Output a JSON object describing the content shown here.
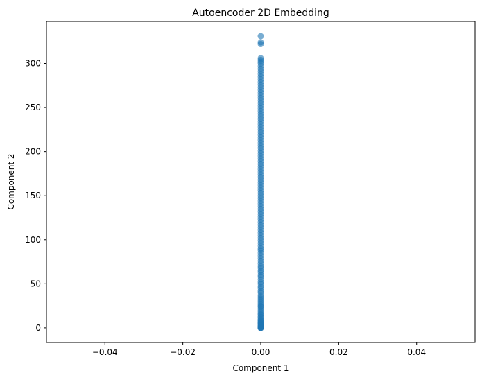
{
  "chart_data": {
    "type": "scatter",
    "title": "Autoencoder 2D Embedding",
    "xlabel": "Component 1",
    "ylabel": "Component 2",
    "xlim": [
      -0.055,
      0.055
    ],
    "ylim": [
      -16.6,
      347.6
    ],
    "xticks": [
      -0.04,
      -0.02,
      0.0,
      0.02,
      0.04
    ],
    "xtick_labels": [
      "−0.04",
      "−0.02",
      "0.00",
      "0.02",
      "0.04"
    ],
    "yticks": [
      0,
      50,
      100,
      150,
      200,
      250,
      300
    ],
    "ytick_labels": [
      "0",
      "50",
      "100",
      "150",
      "200",
      "250",
      "300"
    ],
    "grid": false,
    "legend": "none",
    "marker_color": "#1f77b4",
    "marker_alpha": 0.6,
    "series": [
      {
        "x_constant": 0.0,
        "y": [
          0,
          0,
          0,
          0,
          1,
          1,
          2,
          2,
          3,
          4,
          5,
          5,
          6,
          7,
          8,
          9,
          10,
          12,
          13,
          15,
          16,
          18,
          20,
          22,
          24,
          25,
          27,
          29,
          31,
          33,
          35,
          37,
          40,
          42,
          45,
          47,
          50,
          52,
          55,
          58,
          60,
          63,
          65,
          68,
          70,
          73,
          76,
          79,
          82,
          85,
          88,
          90,
          93,
          96,
          99,
          102,
          105,
          108,
          111,
          114,
          117,
          120,
          123,
          126,
          129,
          132,
          135,
          138,
          141,
          144,
          147,
          150,
          153,
          156,
          159,
          162,
          165,
          168,
          171,
          174,
          177,
          180,
          183,
          186,
          189,
          192,
          195,
          198,
          201,
          204,
          207,
          210,
          213,
          216,
          219,
          222,
          225,
          228,
          231,
          234,
          237,
          240,
          243,
          246,
          249,
          252,
          255,
          258,
          261,
          264,
          267,
          270,
          273,
          276,
          279,
          282,
          285,
          288,
          291,
          294,
          297,
          300,
          302,
          304,
          306,
          322,
          324,
          331
        ]
      }
    ]
  }
}
